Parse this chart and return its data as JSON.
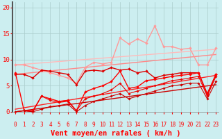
{
  "xlabel": "Vent moyen/en rafales ( km/h )",
  "bg_color": "#cceef0",
  "grid_color": "#aacccc",
  "lines": [
    {
      "x": [
        0,
        1,
        2,
        3,
        4,
        5,
        6,
        7,
        8,
        9,
        10,
        11,
        12,
        13,
        14,
        15,
        16,
        17,
        18,
        19,
        20,
        21,
        22,
        23
      ],
      "y": [
        9.0,
        9.0,
        8.5,
        8.0,
        7.5,
        7.0,
        6.5,
        5.5,
        8.5,
        9.5,
        9.2,
        9.5,
        14.2,
        13.0,
        14.0,
        13.2,
        16.5,
        12.5,
        12.5,
        12.0,
        12.2,
        9.0,
        9.0,
        12.2
      ],
      "color": "#ff9999",
      "lw": 1.0,
      "marker": "D",
      "ms": 2.0
    },
    {
      "x": [
        0,
        23
      ],
      "y": [
        9.0,
        12.0
      ],
      "color": "#ffbbbb",
      "lw": 1.0,
      "marker": null,
      "ms": 0
    },
    {
      "x": [
        0,
        23
      ],
      "y": [
        7.2,
        11.0
      ],
      "color": "#ff8888",
      "lw": 1.0,
      "marker": null,
      "ms": 0
    },
    {
      "x": [
        0,
        1,
        2,
        3,
        4,
        5,
        6,
        7,
        8,
        9,
        10,
        11,
        12,
        13,
        14,
        15,
        16,
        17,
        18,
        19,
        20,
        21,
        22,
        23
      ],
      "y": [
        7.2,
        7.2,
        6.5,
        8.0,
        7.8,
        7.5,
        7.2,
        5.2,
        7.8,
        8.0,
        7.8,
        8.5,
        8.0,
        8.2,
        7.5,
        7.8,
        6.5,
        7.0,
        7.2,
        7.5,
        7.5,
        7.5,
        3.5,
        7.2
      ],
      "color": "#dd0000",
      "lw": 1.0,
      "marker": "D",
      "ms": 2.0
    },
    {
      "x": [
        0,
        1,
        2,
        3,
        4,
        5,
        6,
        7,
        8,
        9,
        10,
        11,
        12,
        13,
        14,
        15,
        16,
        17,
        18,
        19,
        20,
        21,
        22,
        23
      ],
      "y": [
        7.5,
        0.2,
        0.2,
        3.0,
        2.5,
        2.0,
        2.2,
        0.2,
        3.8,
        4.5,
        5.0,
        5.8,
        7.8,
        4.5,
        4.8,
        6.0,
        6.2,
        6.5,
        6.8,
        7.0,
        7.2,
        7.5,
        3.2,
        7.2
      ],
      "color": "#ff0000",
      "lw": 1.0,
      "marker": "D",
      "ms": 2.0
    },
    {
      "x": [
        0,
        23
      ],
      "y": [
        0.5,
        7.0
      ],
      "color": "#ff2222",
      "lw": 1.0,
      "marker": null,
      "ms": 0
    },
    {
      "x": [
        0,
        23
      ],
      "y": [
        0.0,
        5.2
      ],
      "color": "#cc0000",
      "lw": 1.0,
      "marker": null,
      "ms": 0
    },
    {
      "x": [
        0,
        1,
        2,
        3,
        4,
        5,
        6,
        7,
        8,
        9,
        10,
        11,
        12,
        13,
        14,
        15,
        16,
        17,
        18,
        19,
        20,
        21,
        22,
        23
      ],
      "y": [
        0.0,
        0.2,
        0.0,
        3.0,
        2.2,
        1.8,
        2.0,
        0.2,
        2.5,
        3.0,
        3.5,
        4.2,
        5.5,
        3.5,
        4.0,
        4.5,
        5.0,
        5.5,
        6.0,
        6.2,
        6.5,
        6.8,
        3.0,
        6.8
      ],
      "color": "#ee0000",
      "lw": 0.8,
      "marker": "D",
      "ms": 1.8
    },
    {
      "x": [
        0,
        1,
        2,
        3,
        4,
        5,
        6,
        7,
        8,
        9,
        10,
        11,
        12,
        13,
        14,
        15,
        16,
        17,
        18,
        19,
        20,
        21,
        22,
        23
      ],
      "y": [
        0.0,
        0.2,
        0.0,
        0.5,
        1.0,
        1.2,
        1.5,
        0.0,
        1.2,
        2.0,
        2.5,
        3.0,
        3.5,
        2.5,
        3.0,
        3.5,
        4.0,
        4.5,
        5.0,
        5.2,
        5.5,
        5.5,
        2.5,
        5.8
      ],
      "color": "#cc0000",
      "lw": 0.8,
      "marker": "D",
      "ms": 1.8
    }
  ],
  "yticks": [
    0,
    5,
    10,
    15,
    20
  ],
  "xticks": [
    0,
    1,
    2,
    3,
    4,
    5,
    6,
    7,
    8,
    9,
    10,
    11,
    12,
    13,
    14,
    15,
    16,
    17,
    18,
    19,
    20,
    21,
    22,
    23
  ],
  "xlim": [
    -0.3,
    23.3
  ],
  "ylim": [
    0,
    21
  ],
  "tick_color": "#ff0000",
  "label_color": "#ff0000",
  "xlabel_fontsize": 7.5,
  "ytick_fontsize": 6.5,
  "xtick_fontsize": 5.5
}
